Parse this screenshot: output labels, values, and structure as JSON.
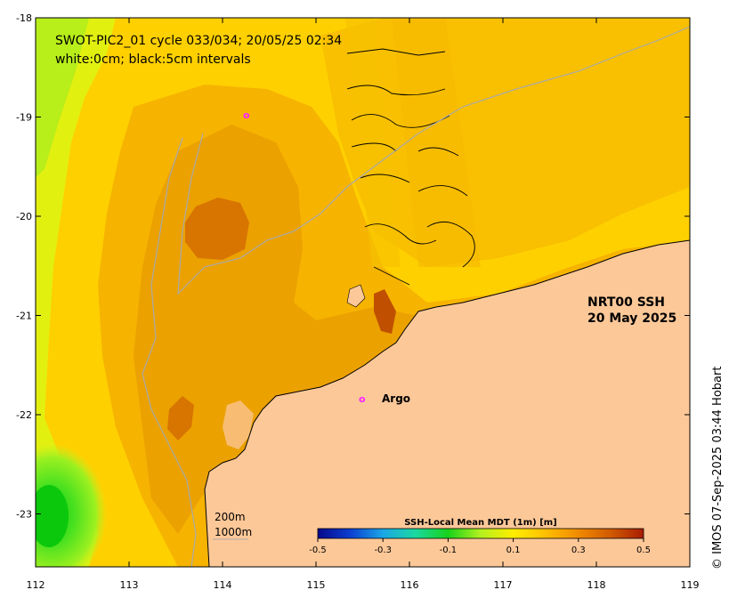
{
  "title": {
    "line1": "SWOT-PIC2_01 cycle 033/034; 20/05/25 02:34",
    "line2": "white:0cm; black:5cm intervals"
  },
  "product": {
    "line1": "NRT00 SSH",
    "line2": "20 May 2025"
  },
  "credit": "© IMOS 07-Sep-2025 03:44 Hobart",
  "argo": {
    "label": "Argo",
    "marker": "o",
    "color": "#ff22ff"
  },
  "extra_marker": {
    "marker": "o"
  },
  "depth_legend": {
    "shallow": "200m",
    "deep": "1000m"
  },
  "axes": {
    "x_ticks": [
      "112",
      "113",
      "114",
      "115",
      "116",
      "117",
      "118",
      "119"
    ],
    "y_ticks": [
      "-18",
      "-19",
      "-20",
      "-21",
      "-22",
      "-23"
    ]
  },
  "colorbar": {
    "title": "SSH-Local Mean MDT (1m) [m]",
    "ticks": [
      "-0.5",
      "-0.3",
      "-0.1",
      "0.1",
      "0.3",
      "0.5"
    ],
    "range": [
      -0.5,
      0.5
    ],
    "colors": [
      "#08088a",
      "#0b3fd1",
      "#1aa6e6",
      "#19d9a0",
      "#17d21a",
      "#b4f01e",
      "#ffee00",
      "#ffbf00",
      "#f08a00",
      "#d05a00",
      "#a81c00"
    ]
  },
  "colors": {
    "land": "#fdc898",
    "low_ssh": "#17d21a",
    "mid_ssh": "#ffd200",
    "high_ssh": "#f0a200",
    "peak_ssh": "#d87000",
    "isobath": "#aaaaaa"
  }
}
